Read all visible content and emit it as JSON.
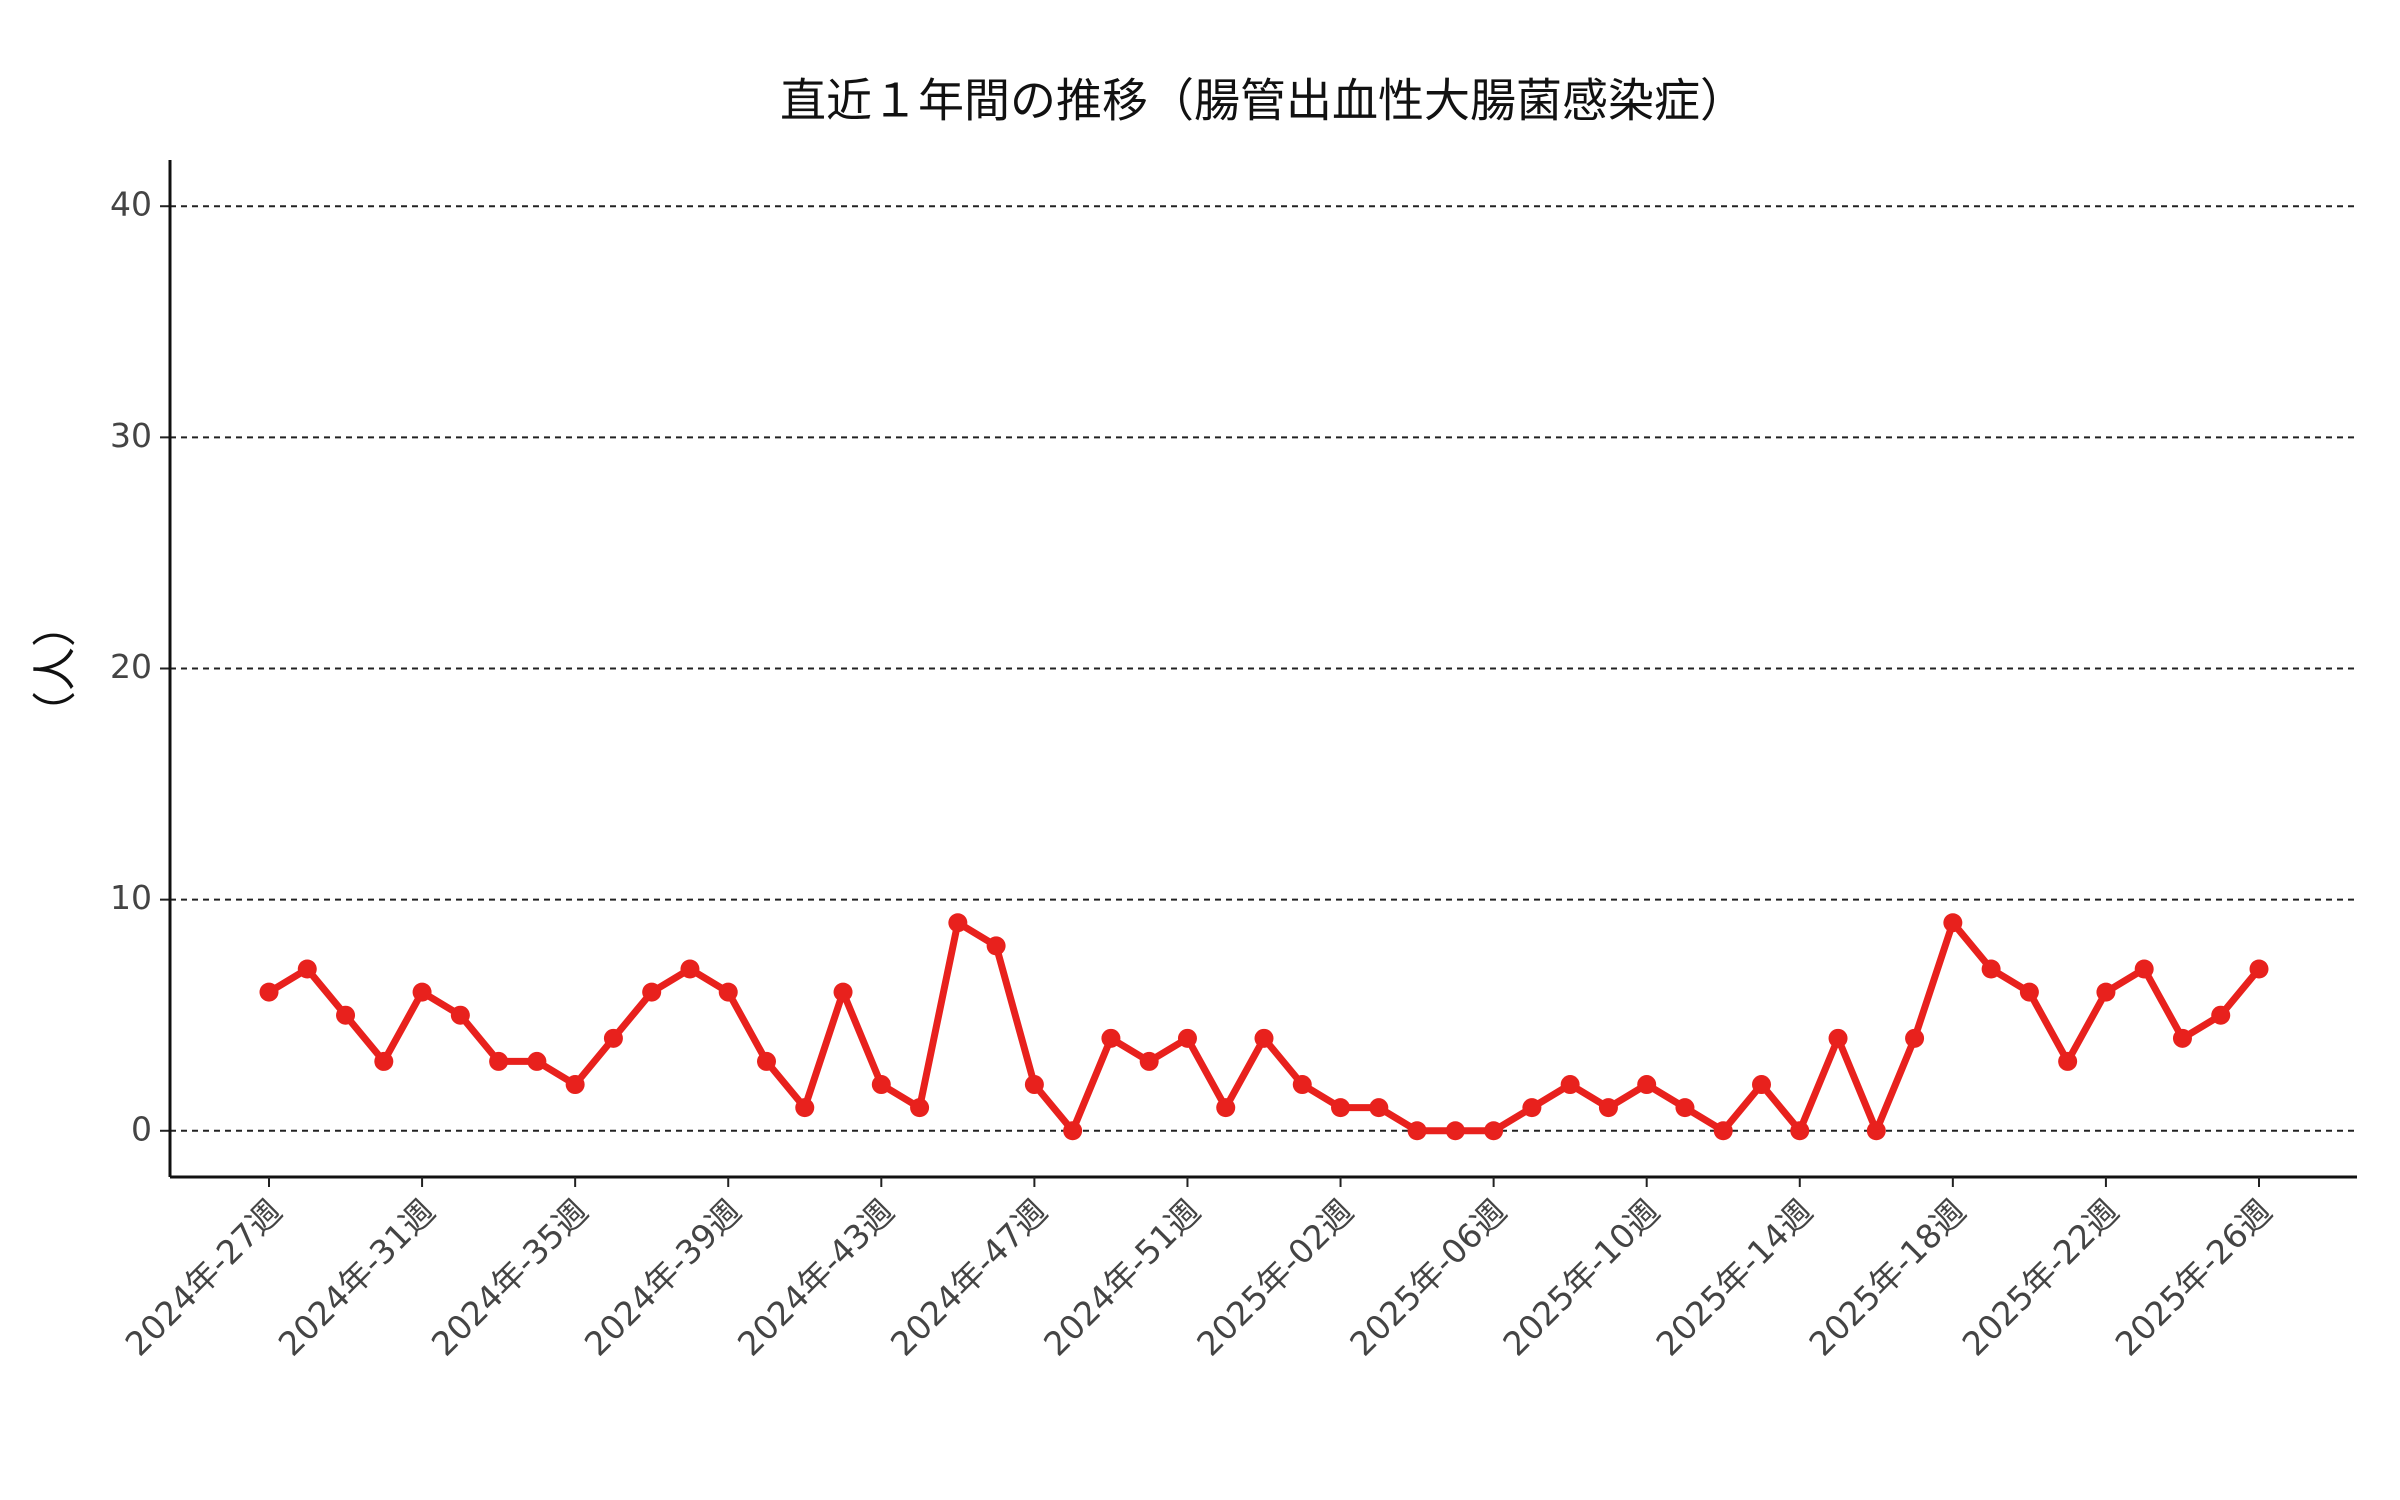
{
  "chart_data": {
    "type": "line",
    "title": "直近１年間の推移（腸管出血性大腸菌感染症）",
    "y_label": "（人）",
    "categories": [
      "2024年-27週",
      null,
      null,
      null,
      "2024年-31週",
      null,
      null,
      null,
      "2024年-35週",
      null,
      null,
      null,
      "2024年-39週",
      null,
      null,
      null,
      "2024年-43週",
      null,
      null,
      null,
      "2024年-47週",
      null,
      null,
      null,
      "2024年-51週",
      null,
      null,
      null,
      "2025年-02週",
      null,
      null,
      null,
      "2025年-06週",
      null,
      null,
      null,
      "2025年-10週",
      null,
      null,
      null,
      "2025年-14週",
      null,
      null,
      null,
      "2025年-18週",
      null,
      null,
      null,
      "2025年-22週",
      null,
      null,
      null,
      "2025年-26週"
    ],
    "values": [
      6,
      7,
      5,
      3,
      6,
      5,
      3,
      3,
      2,
      4,
      6,
      7,
      6,
      3,
      1,
      6,
      2,
      1,
      9,
      8,
      2,
      0,
      4,
      3,
      4,
      1,
      4,
      2,
      1,
      1,
      0,
      0,
      0,
      1,
      2,
      1,
      2,
      1,
      0,
      2,
      0,
      4,
      0,
      4,
      9,
      7,
      6,
      3,
      6,
      7,
      4,
      5,
      7
    ],
    "color": "#e8211d",
    "ylim": [
      -2,
      42
    ],
    "yticks": [
      0,
      10,
      20,
      30,
      40
    ],
    "grid": true
  }
}
